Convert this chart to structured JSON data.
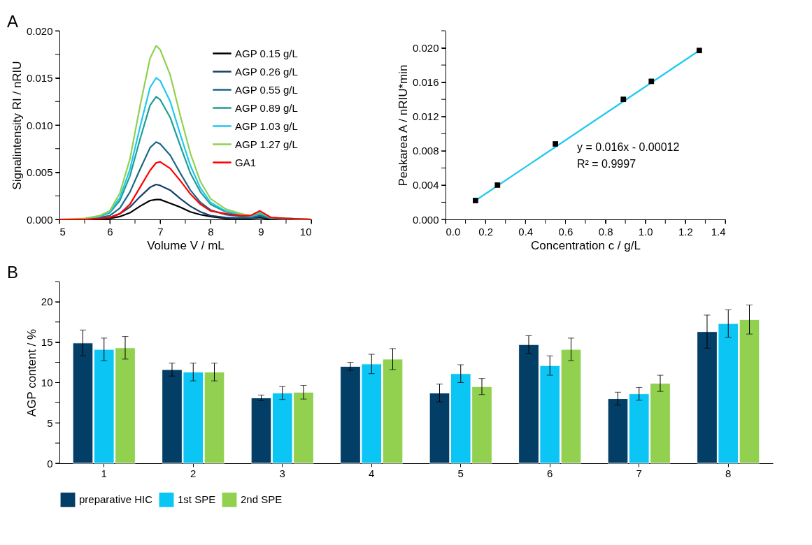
{
  "chart_data": [
    {
      "type": "line",
      "xlabel": "Volume V / mL",
      "ylabel": "Signalintensity RI / nRIU",
      "annotations": [
        "A"
      ],
      "legend": "top right",
      "x": [
        5,
        5.5,
        5.8,
        6,
        6.2,
        6.4,
        6.6,
        6.8,
        6.92,
        7.0,
        7.2,
        7.4,
        7.6,
        7.8,
        8,
        8.3,
        8.6,
        8.8,
        8.98,
        9.2,
        9.5,
        10
      ],
      "xlim": [
        5,
        10
      ],
      "xticks": [
        5,
        {
          "value": 5.5,
          "label": null
        },
        6,
        {
          "value": 6.5,
          "label": null
        },
        7,
        {
          "value": 7.5,
          "label": null
        },
        8,
        {
          "value": 8.5,
          "label": null
        },
        9,
        {
          "value": 9.5,
          "label": null
        },
        10
      ],
      "ylim": [
        0,
        0.02
      ],
      "yticks": [
        {
          "value": 0,
          "label": "0.000"
        },
        {
          "value": 0.0025,
          "label": null
        },
        {
          "value": 0.005,
          "label": "0.005"
        },
        {
          "value": 0.0075,
          "label": null
        },
        {
          "value": 0.01,
          "label": "0.010"
        },
        {
          "value": 0.0125,
          "label": null
        },
        {
          "value": 0.015,
          "label": "0.015"
        },
        {
          "value": 0.0175,
          "label": null
        },
        {
          "value": 0.02,
          "label": "0.020"
        }
      ],
      "series": [
        {
          "name": "AGP 0.15 g/L",
          "color": "#000000",
          "values": [
            0,
            0,
            0,
            0.0001,
            0.0003,
            0.0007,
            0.0014,
            0.002,
            0.0021,
            0.0021,
            0.0017,
            0.0013,
            0.0008,
            0.0005,
            0.0003,
            0.0001,
            0.0001,
            0.0001,
            0.0002,
            0,
            0,
            0
          ]
        },
        {
          "name": "AGP 0.26 g/L",
          "color": "#163f6a",
          "values": [
            0,
            0,
            0.0001,
            0.0002,
            0.0006,
            0.0013,
            0.0024,
            0.0034,
            0.0037,
            0.0036,
            0.0031,
            0.0022,
            0.0014,
            0.0008,
            0.0004,
            0.0002,
            0.0001,
            0.0001,
            0.0003,
            0.0001,
            0,
            0
          ]
        },
        {
          "name": "AGP 0.55 g/L",
          "color": "#1b6688",
          "values": [
            0,
            0,
            0.0002,
            0.0004,
            0.0012,
            0.0029,
            0.0053,
            0.0076,
            0.0082,
            0.008,
            0.0068,
            0.0049,
            0.0031,
            0.0018,
            0.001,
            0.0005,
            0.0003,
            0.0002,
            0.0004,
            0.0001,
            0,
            0
          ]
        },
        {
          "name": "AGP 0.89 g/L",
          "color": "#1f9e96",
          "values": [
            0,
            0,
            0.0003,
            0.0007,
            0.002,
            0.0046,
            0.0085,
            0.0121,
            0.013,
            0.0127,
            0.0108,
            0.0078,
            0.0049,
            0.0029,
            0.0016,
            0.0008,
            0.0004,
            0.0003,
            0.0006,
            0.0001,
            0.0001,
            0
          ]
        },
        {
          "name": "AGP 1.03 g/L",
          "color": "#1ec8f0",
          "values": [
            0,
            0,
            0.0003,
            0.0008,
            0.0023,
            0.0053,
            0.0098,
            0.014,
            0.015,
            0.0147,
            0.0125,
            0.009,
            0.0057,
            0.0033,
            0.0018,
            0.0009,
            0.0005,
            0.0003,
            0.0007,
            0.0002,
            0.0001,
            0
          ]
        },
        {
          "name": "AGP 1.27 g/L",
          "color": "#8fd14f",
          "values": [
            0,
            0.0001,
            0.0004,
            0.0009,
            0.0028,
            0.0064,
            0.012,
            0.0171,
            0.0184,
            0.018,
            0.0153,
            0.011,
            0.007,
            0.004,
            0.0022,
            0.0011,
            0.0006,
            0.0004,
            0.0008,
            0.0002,
            0.0001,
            0
          ]
        },
        {
          "name": "GA1",
          "color": "#ff0000",
          "values": [
            0,
            0,
            0.0001,
            0.0002,
            0.0006,
            0.0016,
            0.0034,
            0.0052,
            0.006,
            0.0061,
            0.0054,
            0.0041,
            0.0027,
            0.0016,
            0.0009,
            0.0006,
            0.0004,
            0.0004,
            0.0009,
            0.0002,
            0.0001,
            0
          ]
        }
      ]
    },
    {
      "type": "scatter",
      "xlabel": "Concentration c / g/L",
      "ylabel": "Peakarea A / nRIU*min",
      "annotations": [
        "y = 0.016x - 0.00012",
        "R² = 0.9997"
      ],
      "x": [
        0.15,
        0.26,
        0.55,
        0.89,
        1.03,
        1.27
      ],
      "xlim": [
        0,
        1.4
      ],
      "xticks": [
        {
          "value": 0,
          "label": "0.0"
        },
        {
          "value": 0.1,
          "label": null
        },
        0.2,
        {
          "value": 0.3,
          "label": null
        },
        0.4,
        {
          "value": 0.5,
          "label": null
        },
        0.6,
        {
          "value": 0.7,
          "label": null
        },
        0.8,
        {
          "value": 0.9,
          "label": null
        },
        {
          "value": 1,
          "label": "1.0"
        },
        {
          "value": 1.1,
          "label": null
        },
        1.2,
        {
          "value": 1.3,
          "label": null
        },
        1.4
      ],
      "ylim": [
        0,
        0.022
      ],
      "yticks": [
        {
          "value": 0,
          "label": "0.000"
        },
        {
          "value": 0.002,
          "label": null
        },
        0.004,
        {
          "value": 0.006,
          "label": null
        },
        0.008,
        {
          "value": 0.01,
          "label": null
        },
        0.012,
        {
          "value": 0.014,
          "label": null
        },
        0.016,
        {
          "value": 0.018,
          "label": null
        },
        {
          "value": 0.02,
          "label": "0.020"
        },
        {
          "value": 0.022,
          "label": null
        }
      ],
      "series": [
        {
          "type": "line",
          "color": "#1ec8f0",
          "x": [
            0.15,
            1.27
          ],
          "values": [
            0.0022,
            0.0197
          ]
        },
        {
          "type": "scatter",
          "color": "#000000",
          "marker": "square",
          "values": [
            0.0022,
            0.004,
            0.0088,
            0.014,
            0.0161,
            0.0197
          ]
        }
      ]
    },
    {
      "type": "bar",
      "ylabel": "AGP content / %",
      "annotations": [
        "B"
      ],
      "legend": "bottom",
      "categories": [
        "1",
        "2",
        "3",
        "4",
        "5",
        "6",
        "7",
        "8"
      ],
      "ylim": [
        0,
        22.5
      ],
      "yticks": [
        0,
        {
          "value": 2.5,
          "label": null
        },
        5,
        {
          "value": 7.5,
          "label": null
        },
        10,
        {
          "value": 12.5,
          "label": null
        },
        15,
        {
          "value": 17.5,
          "label": null
        },
        20,
        {
          "value": 22.5,
          "label": null
        }
      ],
      "series": [
        {
          "name": "preparative HIC",
          "color": "#023e65",
          "values": [
            14.9,
            11.6,
            8.1,
            12.0,
            8.7,
            14.7,
            8.0,
            16.3
          ],
          "errors": [
            1.6,
            0.8,
            0.35,
            0.5,
            1.1,
            1.1,
            0.8,
            2.05
          ]
        },
        {
          "name": "1st SPE",
          "color": "#0bc6f5",
          "values": [
            14.1,
            11.3,
            8.7,
            12.3,
            11.1,
            12.1,
            8.6,
            17.3
          ],
          "errors": [
            1.4,
            1.1,
            0.8,
            1.2,
            1.1,
            1.2,
            0.8,
            1.7
          ]
        },
        {
          "name": "2nd SPE",
          "color": "#92d050",
          "values": [
            14.3,
            11.3,
            8.8,
            12.9,
            9.5,
            14.1,
            9.9,
            17.8
          ],
          "errors": [
            1.4,
            1.1,
            0.85,
            1.3,
            1.0,
            1.4,
            1.0,
            1.8
          ]
        }
      ]
    }
  ]
}
